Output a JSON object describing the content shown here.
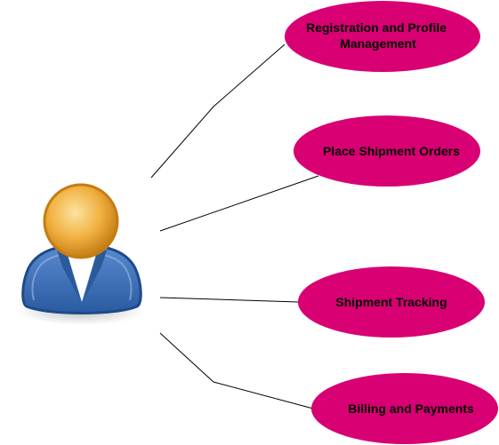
{
  "diagram": {
    "actor": {
      "icon": "user-icon",
      "head_color": "#e8a020",
      "body_color": "#3465a4"
    },
    "use_case_fill": "#d80073",
    "use_cases": [
      {
        "name": "registration",
        "lines": [
          "Registration and Profile",
          "Management"
        ]
      },
      {
        "name": "place-shipment-orders",
        "lines": [
          "Place Shipment Orders"
        ]
      },
      {
        "name": "shipment-tracking",
        "lines": [
          "Shipment Tracking"
        ]
      },
      {
        "name": "billing-and-payments",
        "lines": [
          "Billing and Payments"
        ]
      }
    ]
  }
}
